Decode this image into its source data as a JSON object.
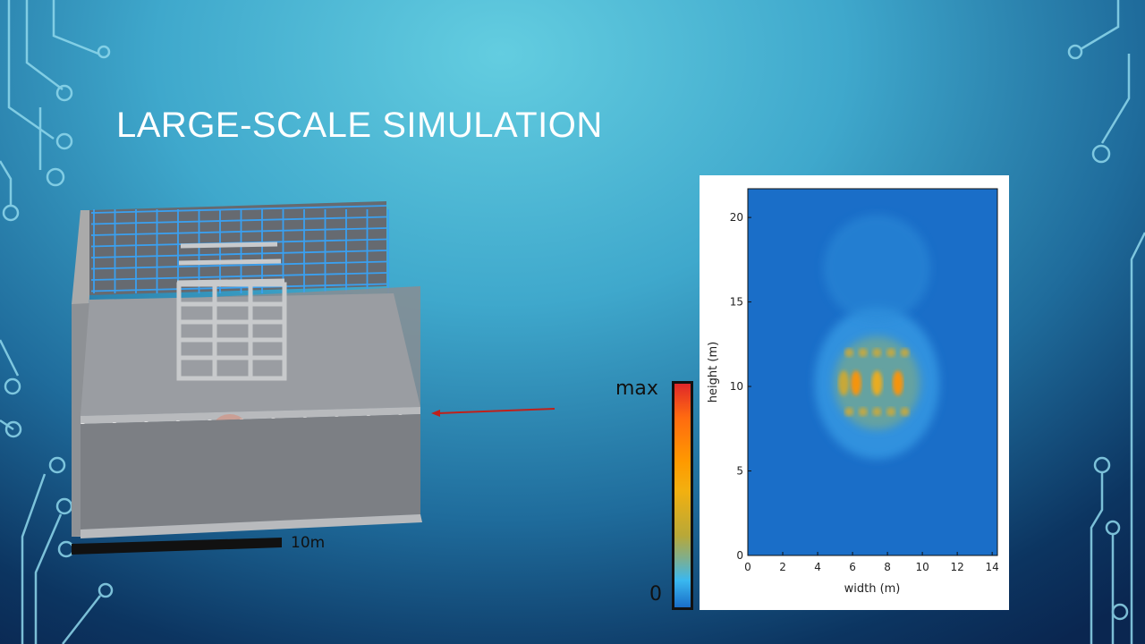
{
  "slide": {
    "title": "LARGE-SCALE SIMULATION"
  },
  "scene": {
    "scale_bar_label": "10m",
    "source_color": "#ff9a20",
    "arrow_color": "#c0201a"
  },
  "colorbar": {
    "max_label": "max",
    "min_label": "0",
    "colors": [
      "#e0282a",
      "#ff9a00",
      "#b8a838",
      "#3ab8f0",
      "#1a6ec8"
    ]
  },
  "chart_data": {
    "type": "heatmap",
    "xlabel": "width (m)",
    "ylabel": "height (m)",
    "xlim": [
      0,
      14.3
    ],
    "ylim": [
      0,
      21.7
    ],
    "xticks": [
      "0",
      "2",
      "4",
      "6",
      "8",
      "10",
      "12",
      "14"
    ],
    "yticks": [
      "0",
      "5",
      "10",
      "15",
      "20"
    ],
    "hotspots": [
      {
        "x": 6.2,
        "y": 10.2,
        "level": 0.85
      },
      {
        "x": 7.4,
        "y": 10.2,
        "level": 0.65
      },
      {
        "x": 8.6,
        "y": 10.2,
        "level": 0.85
      },
      {
        "x": 5.5,
        "y": 10.2,
        "level": 0.55
      }
    ],
    "background_level": 0.05
  }
}
